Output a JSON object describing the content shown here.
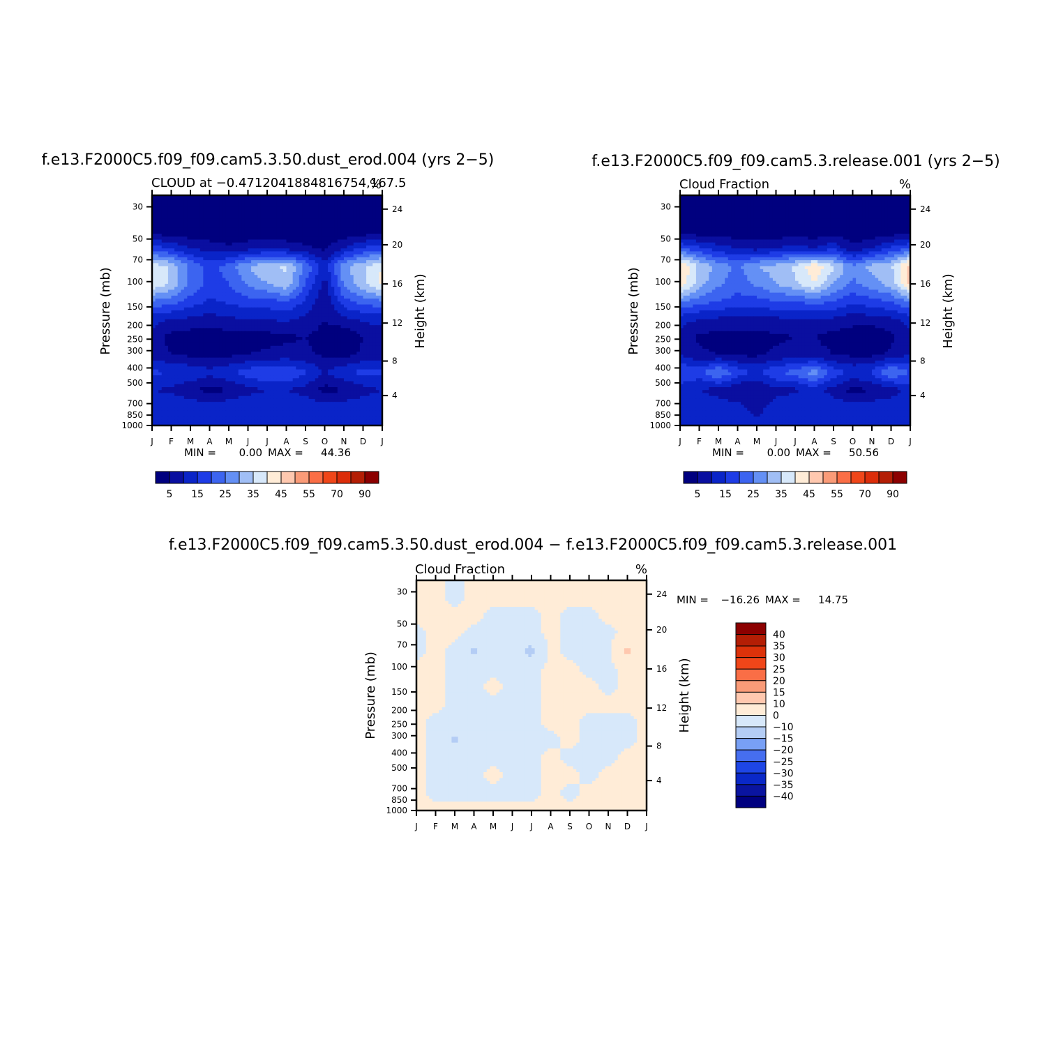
{
  "colors": {
    "abs_palette": [
      "#00007f",
      "#0a0fa0",
      "#0a24c8",
      "#1e3ce6",
      "#3c64f0",
      "#6490f5",
      "#a0bef5",
      "#d7e8fa",
      "#ffecd7",
      "#ffc8af",
      "#fa9b78",
      "#fa6e46",
      "#f04619",
      "#dc2d0a",
      "#b41e05",
      "#8c0000"
    ],
    "diff_palette": [
      "#00007f",
      "#0a14a0",
      "#0a28c8",
      "#1e46e6",
      "#466ef0",
      "#78a0f5",
      "#b4cdf5",
      "#d7e8fa",
      "#ffecd7",
      "#ffc8af",
      "#fa9b78",
      "#fa6e46",
      "#f04619",
      "#dc320a",
      "#b41e05",
      "#8c0000"
    ]
  },
  "chart_data": [
    {
      "type": "contour",
      "title": "f.e13.F2000C5.f09_f09.cam5.3.50.dust_erod.004 (yrs 2−5)",
      "subtitle_left": "CLOUD at −0.471204188481675​4,167.5",
      "subtitle_left_raw": "CLOUD at −0.4712041884816754,167.5",
      "subtitle_right": "%",
      "ylabel": "Pressure (mb)",
      "ylabel_right": "Height (km)",
      "x_ticks": [
        "J",
        "F",
        "M",
        "A",
        "M",
        "J",
        "J",
        "A",
        "S",
        "O",
        "N",
        "D",
        "J"
      ],
      "y_ticks": [
        "30",
        "50",
        "70",
        "100",
        "150",
        "200",
        "250",
        "300",
        "400",
        "500",
        "700",
        "850",
        "1000"
      ],
      "y_ticks_right": [
        "24",
        "20",
        "16",
        "12",
        "8",
        "4"
      ],
      "min_label": "MIN =",
      "min_value": "0.00",
      "max_label": "MAX =",
      "max_value": "44.36",
      "colorbar_labels": [
        "5",
        "15",
        "25",
        "35",
        "45",
        "55",
        "70",
        "90"
      ],
      "levels": [
        0,
        5,
        10,
        15,
        20,
        25,
        30,
        35,
        40,
        45,
        50,
        55,
        60,
        70,
        80,
        90
      ],
      "field": [
        [
          0,
          0,
          0,
          0,
          0,
          0,
          0,
          0,
          0,
          0,
          0,
          0,
          0
        ],
        [
          0,
          0,
          0,
          0,
          0,
          0,
          0,
          0,
          0,
          0,
          0,
          0,
          0
        ],
        [
          2,
          1,
          1,
          1,
          1,
          1,
          1,
          1,
          1,
          1,
          1,
          1,
          2
        ],
        [
          18,
          14,
          10,
          8,
          6,
          8,
          10,
          8,
          6,
          4,
          10,
          16,
          18
        ],
        [
          38,
          34,
          24,
          18,
          22,
          30,
          34,
          36,
          24,
          12,
          28,
          34,
          40
        ],
        [
          40,
          34,
          24,
          18,
          20,
          26,
          30,
          34,
          20,
          8,
          26,
          34,
          42
        ],
        [
          24,
          22,
          18,
          14,
          16,
          18,
          18,
          20,
          14,
          6,
          18,
          22,
          24
        ],
        [
          12,
          10,
          9,
          8,
          9,
          10,
          10,
          11,
          9,
          5,
          9,
          11,
          12
        ],
        [
          8,
          3,
          2,
          1,
          3,
          3,
          3,
          4,
          5,
          3,
          0,
          5,
          7
        ],
        [
          8,
          5,
          4,
          3,
          4,
          5,
          6,
          7,
          6,
          4,
          3,
          6,
          8
        ],
        [
          16,
          15,
          14,
          12,
          14,
          18,
          20,
          20,
          16,
          10,
          14,
          17,
          16
        ],
        [
          10,
          9,
          6,
          3,
          5,
          8,
          10,
          10,
          8,
          3,
          5,
          8,
          10
        ],
        [
          14,
          14,
          14,
          13,
          14,
          15,
          15,
          15,
          14,
          13,
          13,
          14,
          14
        ],
        [
          12,
          12,
          12,
          12,
          12,
          12,
          12,
          12,
          12,
          12,
          12,
          12,
          12
        ]
      ]
    },
    {
      "type": "contour",
      "title": "f.e13.F2000C5.f09_f09.cam5.3.release.001 (yrs 2−5)",
      "subtitle_left": "Cloud Fraction",
      "subtitle_right": "%",
      "ylabel": "Pressure (mb)",
      "ylabel_right": "Height (km)",
      "x_ticks": [
        "J",
        "F",
        "M",
        "A",
        "M",
        "J",
        "J",
        "A",
        "S",
        "O",
        "N",
        "D",
        "J"
      ],
      "y_ticks": [
        "30",
        "50",
        "70",
        "100",
        "150",
        "200",
        "250",
        "300",
        "400",
        "500",
        "700",
        "850",
        "1000"
      ],
      "y_ticks_right": [
        "24",
        "20",
        "16",
        "12",
        "8",
        "4"
      ],
      "min_label": "MIN =",
      "min_value": "0.00",
      "max_label": "MAX =",
      "max_value": "50.56",
      "colorbar_labels": [
        "5",
        "15",
        "25",
        "35",
        "45",
        "55",
        "70",
        "90"
      ],
      "levels": [
        0,
        5,
        10,
        15,
        20,
        25,
        30,
        35,
        40,
        45,
        50,
        55,
        60,
        70,
        80,
        90
      ],
      "field": [
        [
          0,
          0,
          0,
          0,
          0,
          0,
          0,
          0,
          0,
          0,
          0,
          0,
          0
        ],
        [
          0,
          0,
          0,
          0,
          0,
          0,
          0,
          0,
          0,
          0,
          0,
          0,
          0
        ],
        [
          2,
          1,
          1,
          1,
          1,
          1,
          1,
          1,
          1,
          1,
          1,
          1,
          2
        ],
        [
          20,
          16,
          12,
          10,
          8,
          10,
          12,
          10,
          14,
          6,
          10,
          16,
          20
        ],
        [
          46,
          34,
          28,
          24,
          30,
          32,
          36,
          44,
          36,
          26,
          32,
          34,
          48
        ],
        [
          44,
          32,
          26,
          22,
          26,
          30,
          34,
          40,
          30,
          24,
          28,
          32,
          46
        ],
        [
          26,
          22,
          20,
          18,
          18,
          20,
          20,
          22,
          20,
          16,
          18,
          20,
          26
        ],
        [
          12,
          10,
          9,
          8,
          8,
          9,
          10,
          10,
          9,
          7,
          8,
          9,
          12
        ],
        [
          8,
          4,
          3,
          3,
          3,
          4,
          5,
          5,
          3,
          2,
          0,
          4,
          8
        ],
        [
          10,
          6,
          5,
          4,
          4,
          6,
          7,
          7,
          5,
          4,
          4,
          6,
          10
        ],
        [
          20,
          18,
          26,
          18,
          14,
          20,
          22,
          28,
          18,
          14,
          16,
          26,
          20
        ],
        [
          12,
          10,
          8,
          5,
          5,
          8,
          9,
          12,
          8,
          3,
          5,
          7,
          12
        ],
        [
          14,
          14,
          13,
          12,
          8,
          13,
          14,
          14,
          13,
          13,
          13,
          14,
          14
        ],
        [
          12,
          12,
          12,
          12,
          12,
          12,
          12,
          12,
          12,
          12,
          12,
          12,
          12
        ]
      ]
    },
    {
      "type": "contour",
      "title": "f.e13.F2000C5.f09_f09.cam5.3.50.dust_erod.004 − f.e13.F2000C5.f09_f09.cam5.3.release.001",
      "subtitle_left": "Cloud Fraction",
      "subtitle_right": "%",
      "ylabel": "Pressure (mb)",
      "ylabel_right": "Height (km)",
      "x_ticks": [
        "J",
        "F",
        "M",
        "A",
        "M",
        "J",
        "J",
        "A",
        "S",
        "O",
        "N",
        "D",
        "J"
      ],
      "y_ticks": [
        "30",
        "50",
        "70",
        "100",
        "150",
        "200",
        "250",
        "300",
        "400",
        "500",
        "700",
        "850",
        "1000"
      ],
      "y_ticks_right": [
        "24",
        "20",
        "16",
        "12",
        "8",
        "4"
      ],
      "min_label": "MIN =",
      "min_value": "−16.26",
      "max_label": "MAX =",
      "max_value": "14.75",
      "colorbar_labels": [
        "40",
        "35",
        "30",
        "25",
        "20",
        "15",
        "10",
        "0",
        "−10",
        "−15",
        "−20",
        "−25",
        "−30",
        "−35",
        "−40"
      ],
      "levels": [
        -40,
        -35,
        -30,
        -25,
        -20,
        -15,
        -10,
        -5,
        0,
        5,
        10,
        15,
        20,
        25,
        30,
        35,
        40
      ],
      "field": [
        [
          1,
          1,
          -1,
          1,
          1,
          1,
          1,
          1,
          1,
          1,
          1,
          1,
          1
        ],
        [
          1,
          1,
          -1,
          1,
          1,
          1,
          1,
          1,
          1,
          1,
          1,
          1,
          1
        ],
        [
          1,
          1,
          1,
          1,
          -1,
          -1,
          -1,
          1,
          -1,
          -1,
          1,
          1,
          1
        ],
        [
          -1,
          1,
          1,
          -1,
          -1,
          -1,
          -1,
          1,
          -1,
          -1,
          -1,
          1,
          1
        ],
        [
          -1,
          1,
          -1,
          -6,
          -1,
          -1,
          -7,
          1,
          -1,
          -1,
          -1,
          6,
          1
        ],
        [
          1,
          1,
          -1,
          -1,
          -1,
          -1,
          -1,
          1,
          1,
          -1,
          -1,
          1,
          1
        ],
        [
          1,
          1,
          -1,
          -1,
          1,
          -1,
          -1,
          1,
          1,
          1,
          -1,
          1,
          1
        ],
        [
          1,
          1,
          -1,
          -1,
          -1,
          -1,
          -1,
          1,
          1,
          1,
          1,
          1,
          1
        ],
        [
          1,
          -1,
          -1,
          -1,
          -1,
          -1,
          -1,
          1,
          1,
          -1,
          -1,
          -1,
          1
        ],
        [
          1,
          -1,
          -6,
          -1,
          -1,
          -1,
          -1,
          -1,
          1,
          -1,
          -1,
          -1,
          1
        ],
        [
          1,
          -1,
          -1,
          -1,
          -1,
          -1,
          -1,
          1,
          -1,
          -1,
          -1,
          1,
          1
        ],
        [
          1,
          -1,
          -1,
          -1,
          1,
          -1,
          -1,
          1,
          1,
          -1,
          1,
          1,
          1
        ],
        [
          1,
          -1,
          -1,
          -1,
          -1,
          -1,
          -1,
          1,
          -1,
          1,
          1,
          1,
          1
        ],
        [
          1,
          1,
          1,
          1,
          1,
          1,
          1,
          1,
          1,
          1,
          1,
          1,
          1
        ]
      ]
    }
  ]
}
